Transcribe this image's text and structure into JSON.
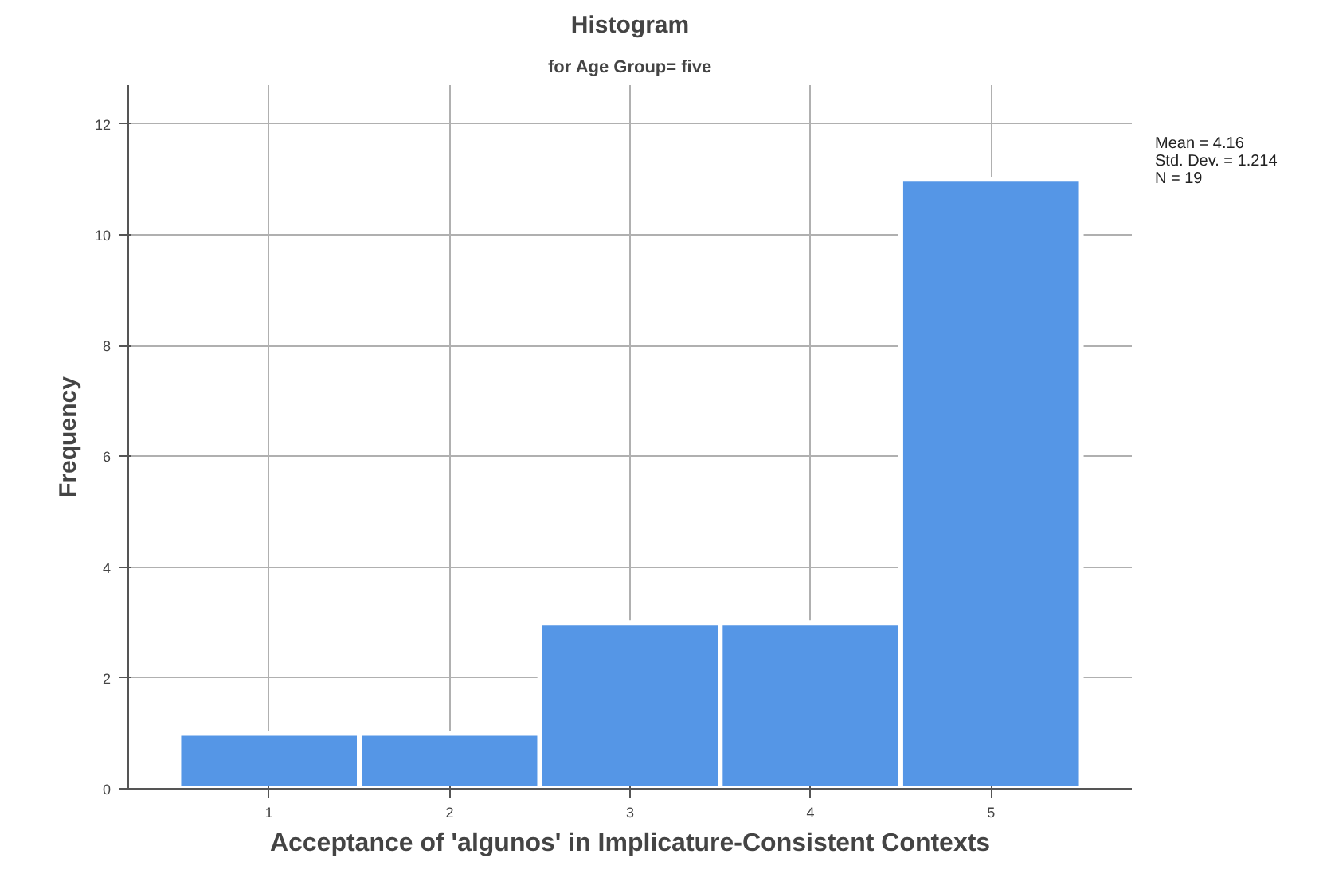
{
  "chart_data": {
    "type": "histogram",
    "title": "Histogram",
    "subtitle": "for Age Group= five",
    "xlabel": "Acceptance of 'algunos' in Implicature-Consistent Contexts",
    "ylabel": "Frequency",
    "bins": [
      0.5,
      1.5,
      2.5,
      3.5,
      4.5,
      5.5
    ],
    "values": [
      1,
      1,
      3,
      3,
      11
    ],
    "color": "#5596e6",
    "xlim": [
      0.22,
      5.78
    ],
    "ylim": [
      0,
      12.7
    ],
    "xticks": [
      1,
      2,
      3,
      4,
      5
    ],
    "yticks": [
      0,
      2,
      4,
      6,
      8,
      10,
      12
    ],
    "grid": true,
    "annotations": [
      "Mean = 4.16",
      "Std. Dev. = 1.214",
      "N = 19"
    ]
  }
}
